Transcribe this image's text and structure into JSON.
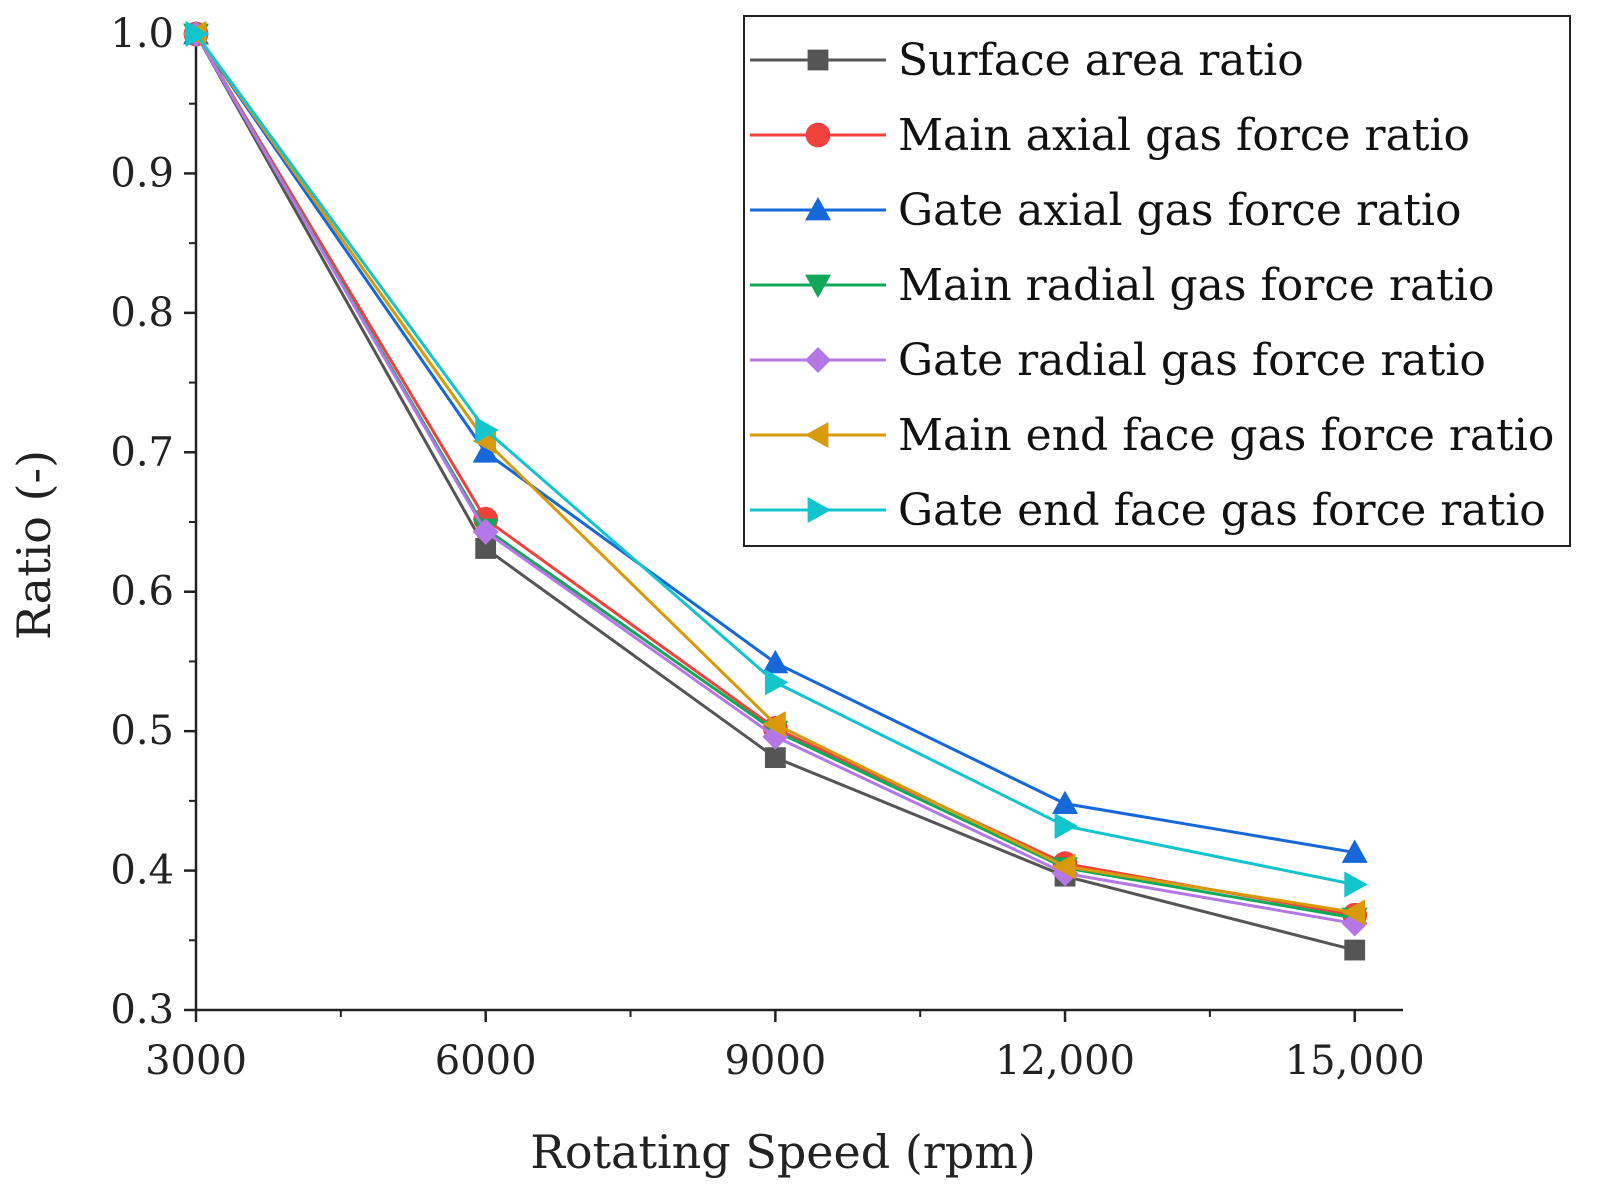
{
  "chart_data": {
    "type": "line",
    "title": "",
    "xlabel": "Rotating Speed (rpm)",
    "ylabel": "Ratio (-)",
    "x": [
      3000,
      6000,
      9000,
      12000,
      15000
    ],
    "x_tick_labels": [
      "3000",
      "6000",
      "9000",
      "12,000",
      "15,000"
    ],
    "xlim": [
      3000,
      15500
    ],
    "ylim": [
      0.3,
      1.0
    ],
    "y_ticks": [
      0.3,
      0.4,
      0.5,
      0.6,
      0.7,
      0.8,
      0.9,
      1.0
    ],
    "y_tick_labels": [
      "0.3",
      "0.4",
      "0.5",
      "0.6",
      "0.7",
      "0.8",
      "0.9",
      "1.0"
    ],
    "legend_position": "top-right",
    "grid": false,
    "series": [
      {
        "name": "Surface area ratio",
        "color": "#555555",
        "marker": "square",
        "values": [
          1.0,
          0.631,
          0.481,
          0.396,
          0.343
        ]
      },
      {
        "name": "Main axial gas force ratio",
        "color": "#f0413c",
        "marker": "circle",
        "values": [
          1.0,
          0.652,
          0.502,
          0.405,
          0.368
        ]
      },
      {
        "name": "Gate axial gas force ratio",
        "color": "#1668d8",
        "marker": "triangle-up",
        "values": [
          1.0,
          0.7,
          0.549,
          0.448,
          0.413
        ]
      },
      {
        "name": "Main radial gas force ratio",
        "color": "#12a85a",
        "marker": "triangle-down",
        "values": [
          1.0,
          0.645,
          0.5,
          0.402,
          0.366
        ]
      },
      {
        "name": "Gate radial gas force ratio",
        "color": "#b677e6",
        "marker": "diamond",
        "values": [
          1.0,
          0.643,
          0.496,
          0.398,
          0.362
        ]
      },
      {
        "name": "Main end face gas force ratio",
        "color": "#d89a0a",
        "marker": "triangle-left",
        "values": [
          1.0,
          0.708,
          0.505,
          0.403,
          0.37
        ]
      },
      {
        "name": "Gate end face gas force ratio",
        "color": "#12c4cc",
        "marker": "triangle-right",
        "values": [
          1.0,
          0.716,
          0.535,
          0.432,
          0.39
        ]
      }
    ]
  }
}
